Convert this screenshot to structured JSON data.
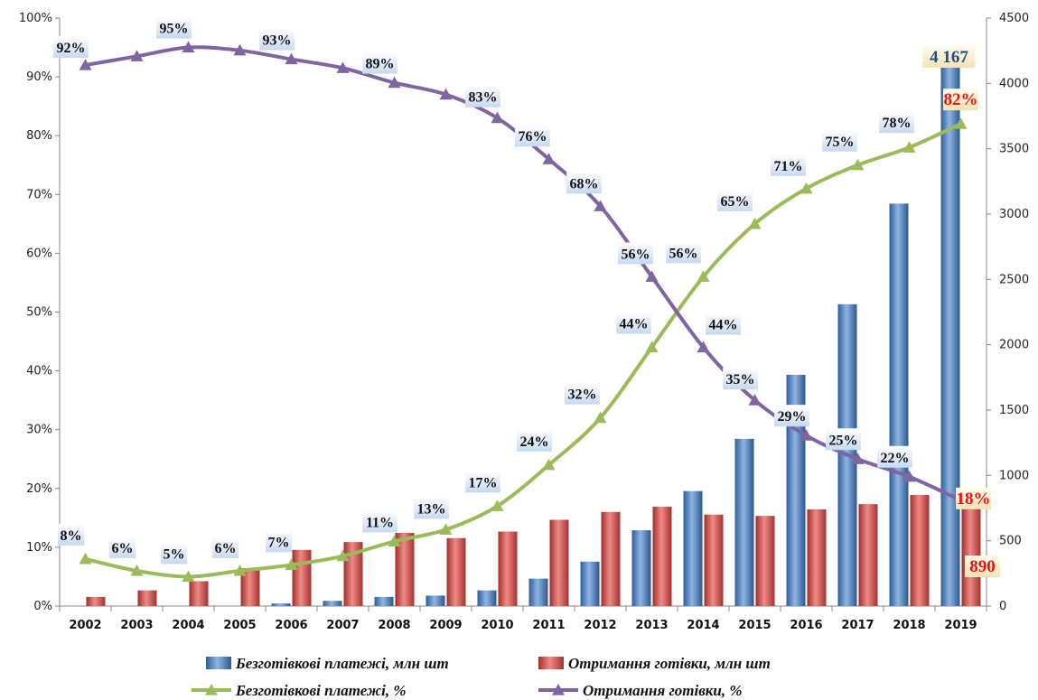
{
  "chart_data": {
    "type": "bar",
    "categories": [
      "2002",
      "2003",
      "2004",
      "2005",
      "2006",
      "2007",
      "2008",
      "2009",
      "2010",
      "2011",
      "2012",
      "2013",
      "2014",
      "2015",
      "2016",
      "2017",
      "2018",
      "2019"
    ],
    "left_axis": {
      "ticks": [
        "0%",
        "10%",
        "20%",
        "30%",
        "40%",
        "50%",
        "60%",
        "70%",
        "80%",
        "90%",
        "100%"
      ],
      "range": [
        0,
        100
      ]
    },
    "right_axis": {
      "ticks": [
        "0",
        "500",
        "1000",
        "1500",
        "2000",
        "2500",
        "3000",
        "3500",
        "4000",
        "4500"
      ],
      "range": [
        0,
        4500
      ]
    },
    "grid": false,
    "legend_position": "bottom",
    "bar_series": [
      {
        "name": "Безготівкові платежі, млн шт",
        "color": "#4f81bd",
        "values": [
          0,
          0,
          0,
          0,
          20,
          40,
          70,
          80,
          120,
          210,
          340,
          580,
          880,
          1280,
          1770,
          2310,
          3080,
          4167
        ]
      },
      {
        "name": "Отримання готівки, млн  шт",
        "color": "#c0504d",
        "values": [
          70,
          120,
          190,
          290,
          430,
          490,
          560,
          520,
          570,
          660,
          720,
          760,
          700,
          690,
          740,
          780,
          850,
          890
        ]
      }
    ],
    "line_series": [
      {
        "name": "Безготівкові платежі, %",
        "color": "#9bbb59",
        "values": [
          8,
          6,
          5,
          6,
          7,
          8.5,
          11,
          13,
          17,
          24,
          32,
          44,
          56,
          65,
          71,
          75,
          78,
          82
        ],
        "labels": [
          "8%",
          "6%",
          "5%",
          "6%",
          "7%",
          "",
          "11%",
          "13%",
          "17%",
          "24%",
          "32%",
          "44%",
          "56%",
          "65%",
          "71%",
          "75%",
          "78%",
          "82%"
        ]
      },
      {
        "name": "Отримання готівки, %",
        "color": "#8064a2",
        "values": [
          92,
          93.5,
          95,
          94.5,
          93,
          91.5,
          89,
          87,
          83,
          76,
          68,
          56,
          44,
          35,
          29,
          25,
          22,
          18
        ],
        "labels": [
          "92%",
          "",
          "95%",
          "",
          "93%",
          "",
          "89%",
          "",
          "83%",
          "76%",
          "68%",
          "56%",
          "44%",
          "35%",
          "29%",
          "25%",
          "22%",
          "18%"
        ]
      }
    ],
    "highlight_labels": {
      "bar_2019_cashless": "4 167",
      "bar_2019_cash": "890"
    }
  }
}
